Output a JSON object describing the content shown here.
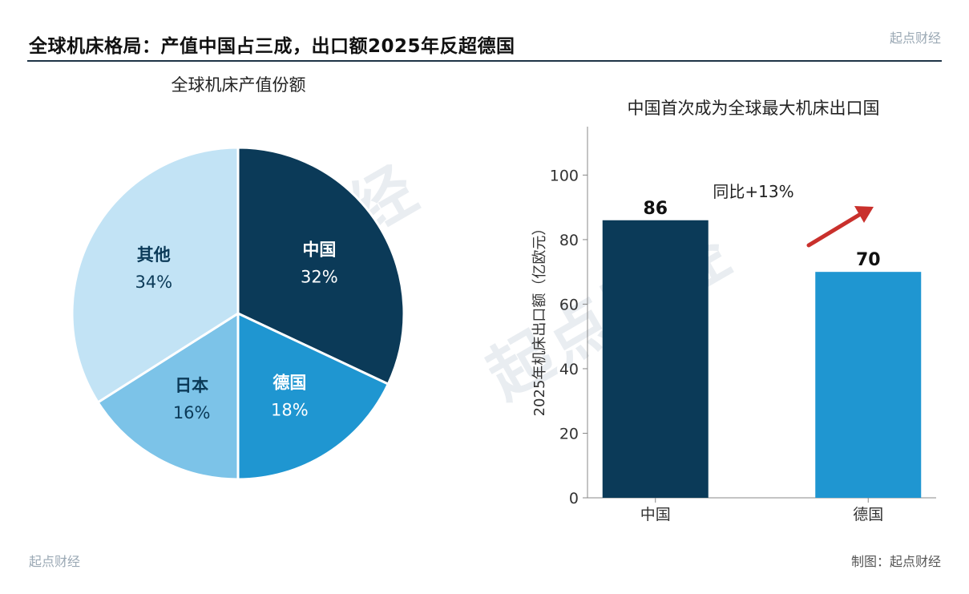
{
  "header": {
    "title": "全球机床格局：产值中国占三成，出口额2025年反超德国",
    "brand": "起点财经"
  },
  "watermark": "起点财经",
  "footer": {
    "left": "起点财经",
    "right": "制图：起点财经"
  },
  "chart_data": [
    {
      "type": "pie",
      "title": "全球机床产值份额",
      "slices": [
        {
          "label": "中国",
          "value": 32,
          "display": "32%",
          "color": "#0b3a58",
          "label_color": "#ffffff"
        },
        {
          "label": "德国",
          "value": 18,
          "display": "18%",
          "color": "#1f96d1",
          "label_color": "#ffffff"
        },
        {
          "label": "日本",
          "value": 16,
          "display": "16%",
          "color": "#7cc3e8",
          "label_color": "#0b3a58"
        },
        {
          "label": "其他",
          "value": 34,
          "display": "34%",
          "color": "#c2e3f5",
          "label_color": "#0b3a58"
        }
      ]
    },
    {
      "type": "bar",
      "title": "中国首次成为全球最大机床出口国",
      "categories": [
        "中国",
        "德国"
      ],
      "values": [
        86,
        70
      ],
      "value_labels": [
        "86",
        "70"
      ],
      "colors": [
        "#0b3a58",
        "#1f96d1"
      ],
      "ylabel": "2025年机床出口额（亿欧元）",
      "xlabel": "",
      "ylim": [
        0,
        115
      ],
      "yticks": [
        0,
        20,
        40,
        60,
        80,
        100
      ],
      "annotation": {
        "text": "同比+13%",
        "arrow_color": "#c9302c"
      }
    }
  ]
}
